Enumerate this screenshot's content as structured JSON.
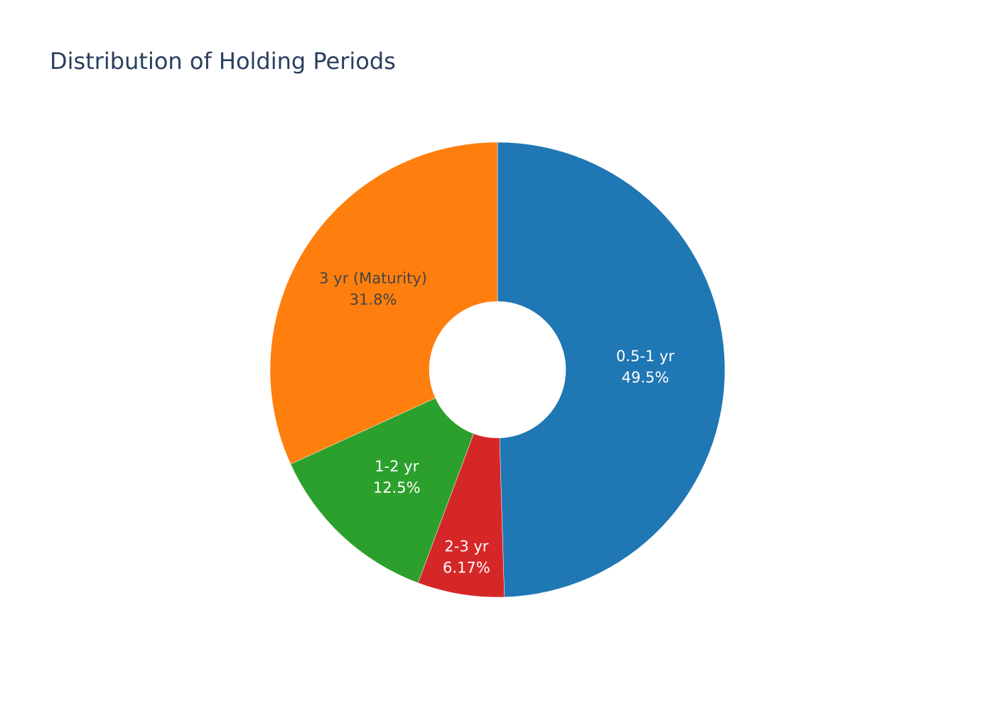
{
  "chart_data": {
    "type": "pie",
    "title": "Distribution of Holding Periods",
    "categories": [
      "0.5-1 yr",
      "2-3 yr",
      "1-2 yr",
      "3 yr (Maturity)"
    ],
    "values": [
      49.5,
      6.17,
      12.5,
      31.8
    ],
    "value_labels": [
      "49.5%",
      "6.17%",
      "12.5%",
      "31.8%"
    ],
    "colors": [
      "#1f77b4",
      "#d62728",
      "#2ca02c",
      "#ff7f0e"
    ],
    "hole": 0.3
  }
}
